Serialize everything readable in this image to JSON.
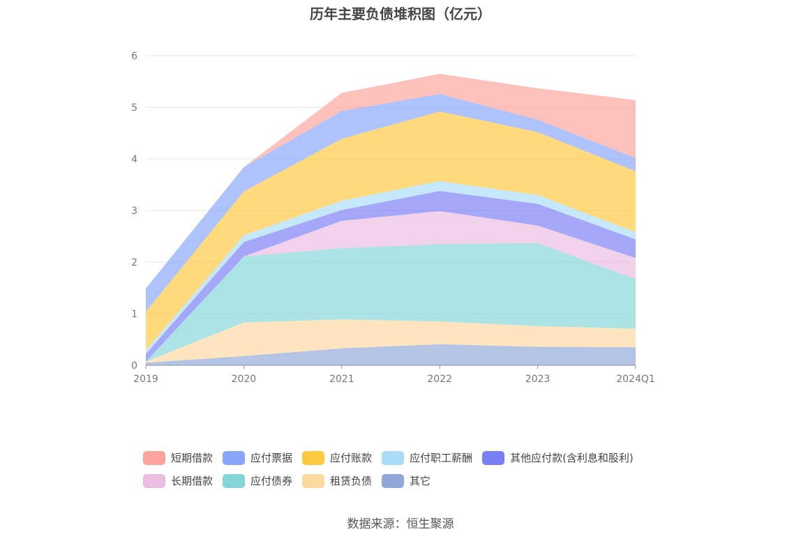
{
  "chart_data": {
    "type": "area",
    "stacked": true,
    "title": "历年主要负债堆积图（亿元）",
    "xlabel": "",
    "ylabel": "",
    "categories": [
      "2019",
      "2020",
      "2021",
      "2022",
      "2023",
      "2024Q1"
    ],
    "ylim": [
      0,
      6
    ],
    "yticks": [
      "0",
      "1",
      "2",
      "3",
      "4",
      "5",
      "6"
    ],
    "grid": true,
    "legend_position": "bottom",
    "series": [
      {
        "name": "其它",
        "color": "#8fa8d8",
        "values": [
          0.05,
          0.18,
          0.33,
          0.41,
          0.36,
          0.35
        ]
      },
      {
        "name": "租赁负债",
        "color": "#fdd9a0",
        "values": [
          0.02,
          0.65,
          0.56,
          0.44,
          0.4,
          0.36
        ]
      },
      {
        "name": "应付债券",
        "color": "#85d6d8",
        "values": [
          0.0,
          1.28,
          1.38,
          1.5,
          1.61,
          0.96
        ]
      },
      {
        "name": "长期借款",
        "color": "#ebbde0",
        "values": [
          0.0,
          0.0,
          0.53,
          0.64,
          0.34,
          0.41
        ]
      },
      {
        "name": "其他应付款(含利息和股利)",
        "color": "#7b7ff5",
        "values": [
          0.15,
          0.28,
          0.21,
          0.39,
          0.42,
          0.36
        ]
      },
      {
        "name": "应付职工薪酬",
        "color": "#a9ddf7",
        "values": [
          0.07,
          0.13,
          0.18,
          0.19,
          0.17,
          0.14
        ]
      },
      {
        "name": "应付账款",
        "color": "#fdc93e",
        "values": [
          0.75,
          0.85,
          1.2,
          1.35,
          1.22,
          1.18
        ]
      },
      {
        "name": "应付票据",
        "color": "#88a6fa",
        "values": [
          0.45,
          0.47,
          0.54,
          0.34,
          0.24,
          0.26
        ]
      },
      {
        "name": "短期借款",
        "color": "#fca49b",
        "values": [
          0.0,
          0.0,
          0.35,
          0.39,
          0.61,
          1.12
        ]
      }
    ],
    "legend_order": [
      "短期借款",
      "应付票据",
      "应付账款",
      "应付职工薪酬",
      "其他应付款(含利息和股利)",
      "长期借款",
      "应付债券",
      "租赁负债",
      "其它"
    ]
  },
  "source": "数据来源：恒生聚源"
}
